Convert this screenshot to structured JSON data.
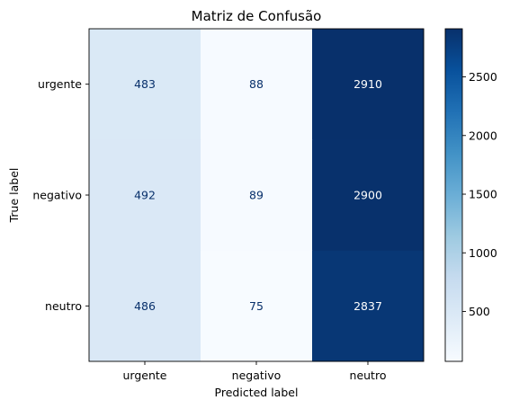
{
  "chart_data": {
    "type": "heatmap",
    "title": "Matriz de Confusão",
    "xlabel": "Predicted label",
    "ylabel": "True label",
    "x_categories": [
      "urgente",
      "negativo",
      "neutro"
    ],
    "y_categories": [
      "urgente",
      "negativo",
      "neutro"
    ],
    "values": [
      [
        483,
        88,
        2910
      ],
      [
        492,
        89,
        2900
      ],
      [
        486,
        75,
        2837
      ]
    ],
    "colormap": "Blues",
    "colorbar": {
      "ticks": [
        500,
        1000,
        1500,
        2000,
        2500
      ],
      "range": [
        75,
        2910
      ]
    },
    "text_color_dark": "#08306b",
    "text_color_light": "#ffffff"
  }
}
